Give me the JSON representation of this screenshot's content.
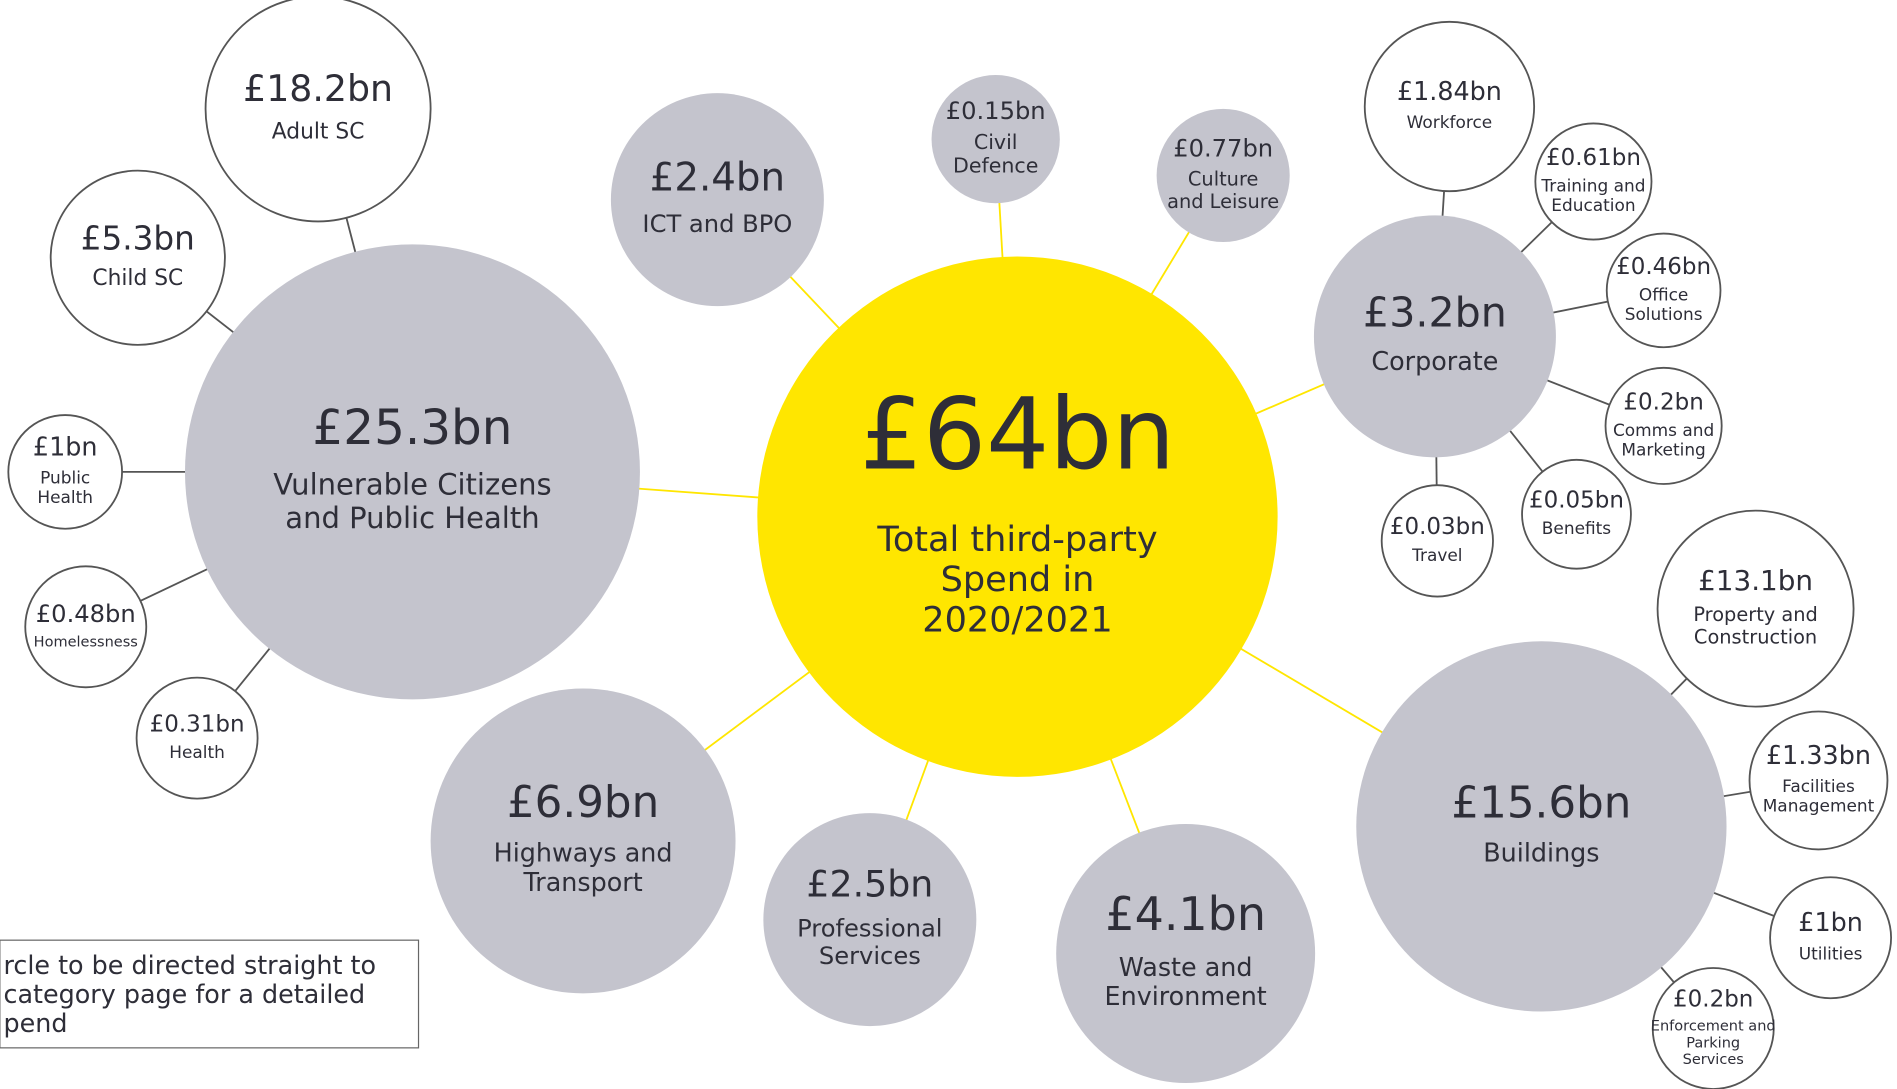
{
  "center": {
    "value": "£64bn",
    "label": [
      "Total third-party",
      "Spend in",
      "2020/2021"
    ]
  },
  "categories": [
    {
      "value": "£25.3bn",
      "label": [
        "Vulnerable Citizens",
        "and Public Health"
      ],
      "subcategories": [
        {
          "value": "£18.2bn",
          "label": [
            "Adult SC"
          ]
        },
        {
          "value": "£5.3bn",
          "label": [
            "Child SC"
          ]
        },
        {
          "value": "£1bn",
          "label": [
            "Public",
            "Health"
          ]
        },
        {
          "value": "£0.48bn",
          "label": [
            "Homelessness"
          ]
        },
        {
          "value": "£0.31bn",
          "label": [
            "Health"
          ]
        }
      ]
    },
    {
      "value": "£2.4bn",
      "label": [
        "ICT and BPO"
      ]
    },
    {
      "value": "£0.15bn",
      "label": [
        "Civil",
        "Defence"
      ]
    },
    {
      "value": "£0.77bn",
      "label": [
        "Culture",
        "and Leisure"
      ]
    },
    {
      "value": "£3.2bn",
      "label": [
        "Corporate"
      ],
      "subcategories": [
        {
          "value": "£1.84bn",
          "label": [
            "Workforce"
          ]
        },
        {
          "value": "£0.61bn",
          "label": [
            "Training and",
            "Education"
          ]
        },
        {
          "value": "£0.46bn",
          "label": [
            "Office",
            "Solutions"
          ]
        },
        {
          "value": "£0.2bn",
          "label": [
            "Comms and",
            "Marketing"
          ]
        },
        {
          "value": "£0.05bn",
          "label": [
            "Benefits"
          ]
        },
        {
          "value": "£0.03bn",
          "label": [
            "Travel"
          ]
        }
      ]
    },
    {
      "value": "£15.6bn",
      "label": [
        "Buildings"
      ],
      "subcategories": [
        {
          "value": "£13.1bn",
          "label": [
            "Property and",
            "Construction"
          ]
        },
        {
          "value": "£1.33bn",
          "label": [
            "Facilities",
            "Management"
          ]
        },
        {
          "value": "£1bn",
          "label": [
            "Utilities"
          ]
        },
        {
          "value": "£0.2bn",
          "label": [
            "Enforcement and",
            "Parking",
            "Services"
          ]
        }
      ]
    },
    {
      "value": "£4.1bn",
      "label": [
        "Waste and",
        "Environment"
      ]
    },
    {
      "value": "£2.5bn",
      "label": [
        "Professional",
        "Services"
      ]
    },
    {
      "value": "£6.9bn",
      "label": [
        "Highways and",
        "Transport"
      ]
    }
  ],
  "note": [
    "rcle to be directed straight to",
    "category page for a detailed",
    "pend"
  ]
}
